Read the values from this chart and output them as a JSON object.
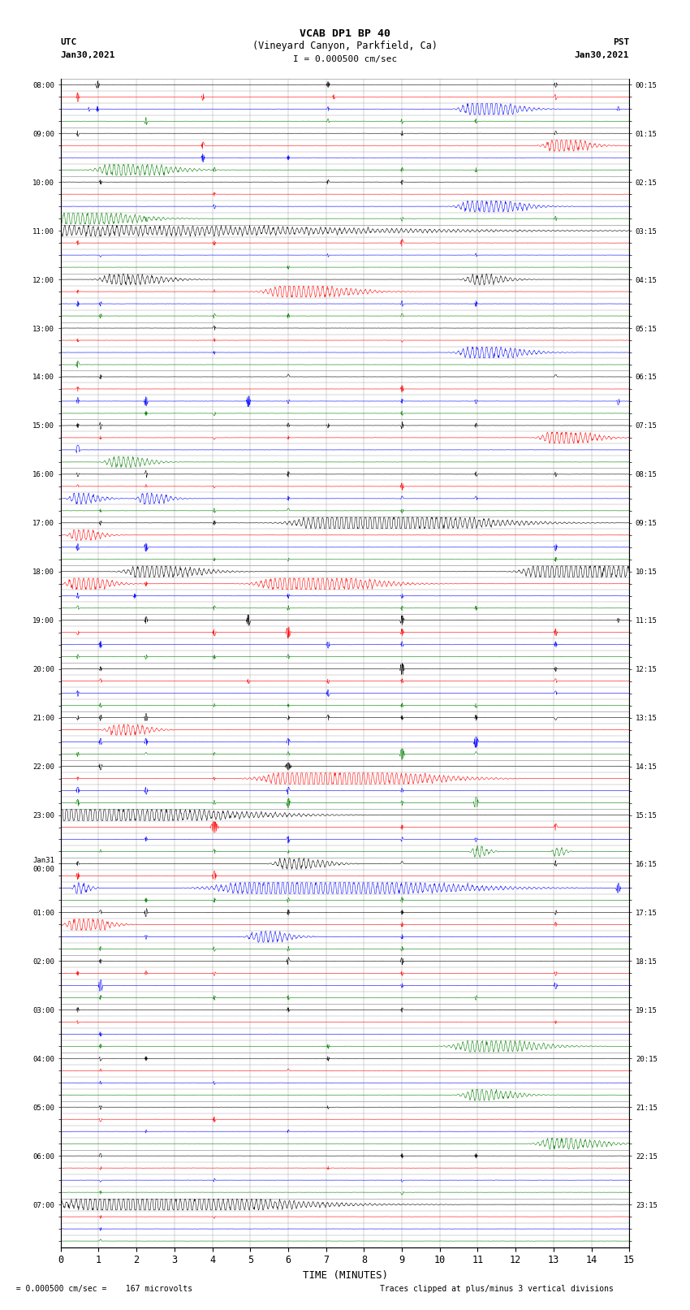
{
  "title_line1": "VCAB DP1 BP 40",
  "title_line2": "(Vineyard Canyon, Parkfield, Ca)",
  "scale_label": "I = 0.000500 cm/sec",
  "utc_label": "UTC",
  "utc_date": "Jan30,2021",
  "pst_label": "PST",
  "pst_date": "Jan30,2021",
  "xlabel": "TIME (MINUTES)",
  "bottom_left": "  = 0.000500 cm/sec =    167 microvolts",
  "bottom_right": "Traces clipped at plus/minus 3 vertical divisions",
  "figsize": [
    8.5,
    16.13
  ],
  "dpi": 100,
  "bg_color": "#ffffff",
  "grid_color": "#aaaaaa",
  "trace_colors": [
    "black",
    "red",
    "blue",
    "green"
  ]
}
